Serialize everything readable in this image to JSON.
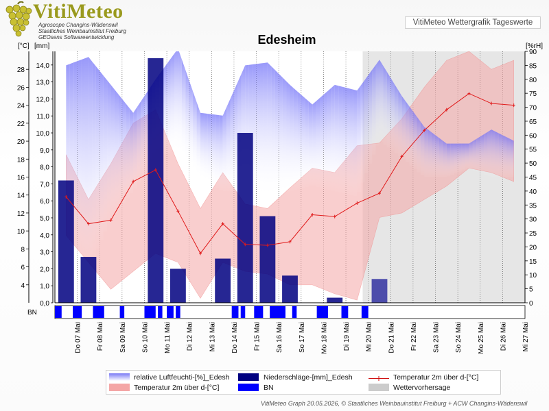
{
  "header": {
    "logo_brand": "VitiMeteo",
    "logo_line1": "Agroscope Changins-Wädenswil",
    "logo_line2": "Staatliches Weinbauinstitut Freiburg",
    "logo_line3": "GEOsens Softwareentwicklung",
    "subtitle_box": "VitiMeteo Wettergrafik Tageswerte"
  },
  "chart_data": {
    "type": "line",
    "title": "Edesheim",
    "left_axis_label_temp": "[°C]",
    "left_axis_label_rain": "[mm]",
    "right_axis_label": "[%rH]",
    "bn_row_label": "BN",
    "temp_axis": {
      "min": 2,
      "max": 30,
      "ticks": [
        4,
        6,
        8,
        10,
        12,
        14,
        16,
        18,
        20,
        22,
        24,
        26,
        28
      ]
    },
    "rain_axis": {
      "min": 0,
      "max": 14.8,
      "ticks": [
        "0,0",
        "1,0",
        "2,0",
        "3,0",
        "4,0",
        "5,0",
        "6,0",
        "7,0",
        "8,0",
        "9,0",
        "10,0",
        "11,0",
        "12,0",
        "13,0",
        "14,0"
      ]
    },
    "humidity_axis": {
      "min": 0,
      "max": 90,
      "ticks": [
        0,
        5,
        10,
        15,
        20,
        25,
        30,
        35,
        40,
        45,
        50,
        55,
        60,
        65,
        70,
        75,
        80,
        85,
        90
      ]
    },
    "categories": [
      "Do 07 Mai",
      "Fr 08 Mai",
      "Sa 09 Mai",
      "So 10 Mai",
      "Mo 11 Mai",
      "Di 12 Mai",
      "Mi 13 Mai",
      "Do 14 Mai",
      "Fr 15 Mai",
      "Sa 16 Mai",
      "So 17 Mai",
      "Mo 18 Mai",
      "Di 19 Mai",
      "Mi 20 Mai",
      "Do 21 Mai",
      "Fr 22 Mai",
      "Sa 23 Mai",
      "So 24 Mai",
      "Mo 25 Mai",
      "Di 26 Mai",
      "Mi 27 Mai"
    ],
    "forecast_start_index": 14,
    "series": [
      {
        "name": "Temperatur 2m über d-[°C]",
        "kind": "line",
        "values": [
          13.8,
          10.8,
          11.2,
          15.5,
          16.8,
          12.2,
          7.5,
          10.8,
          8.5,
          8.4,
          8.8,
          11.8,
          11.6,
          13.1,
          14.2,
          18.3,
          21.2,
          23.5,
          25.3,
          24.2,
          24.0
        ]
      },
      {
        "name": "Temperatur 2m über d-[°C]",
        "kind": "band",
        "min": [
          9.5,
          6.5,
          3.5,
          5.5,
          7.5,
          6.5,
          2.5,
          6.5,
          5.5,
          5.2,
          4.0,
          4.0,
          3.0,
          2.3,
          11.5,
          12.0,
          13.5,
          15.0,
          17.0,
          16.5,
          15.5
        ],
        "max": [
          18.5,
          13.5,
          17.5,
          22.0,
          23.5,
          17.5,
          12.5,
          16.5,
          13.0,
          12.5,
          14.8,
          17.0,
          16.5,
          19.5,
          19.8,
          22.5,
          26.0,
          29.0,
          30.0,
          28.0,
          29.0
        ]
      },
      {
        "name": "Niederschläge-[mm]_Edesh",
        "kind": "bar",
        "values": [
          7.2,
          2.7,
          0.0,
          0.0,
          14.4,
          2.0,
          0.0,
          2.6,
          10.0,
          5.1,
          1.6,
          0.0,
          0.3,
          0.0,
          1.4,
          0.0,
          0.0,
          0.0,
          0.0,
          0.0,
          0.0
        ]
      },
      {
        "name": "relative Luftfeuchti-[%]_Edesh",
        "kind": "area",
        "values": [
          85,
          88,
          78,
          68,
          80,
          91,
          68,
          67,
          85,
          86,
          78,
          71,
          78,
          76,
          87,
          74,
          63,
          57,
          57,
          62,
          58
        ],
        "low_values": [
          20,
          12,
          30,
          40,
          52,
          55,
          45,
          40,
          40,
          38,
          40,
          42,
          40,
          38,
          58,
          52,
          45,
          45,
          48,
          45,
          45
        ]
      },
      {
        "name": "BN",
        "kind": "bar-row"
      },
      {
        "name": "Wettervorhersage",
        "kind": "region"
      }
    ],
    "legend": [
      {
        "label": "relative Luftfeuchti-[%]_Edesh",
        "color": "#8080ff"
      },
      {
        "label": "Niederschläge-[mm]_Edesh",
        "color": "#000080"
      },
      {
        "label": "Temperatur 2m über d-[°C]",
        "color": "#d01010"
      },
      {
        "label": "Temperatur 2m über d-[°C]",
        "color": "#f4a6a6"
      },
      {
        "label": "BN",
        "color": "#0000ff"
      },
      {
        "label": "Wettervorhersage",
        "color": "#cccccc"
      }
    ]
  },
  "footer": {
    "text": "VitiMeteo Graph 20.05.2026, © Staatliches Weinbauinstitut Freiburg + ACW Changins-Wädenswil"
  }
}
